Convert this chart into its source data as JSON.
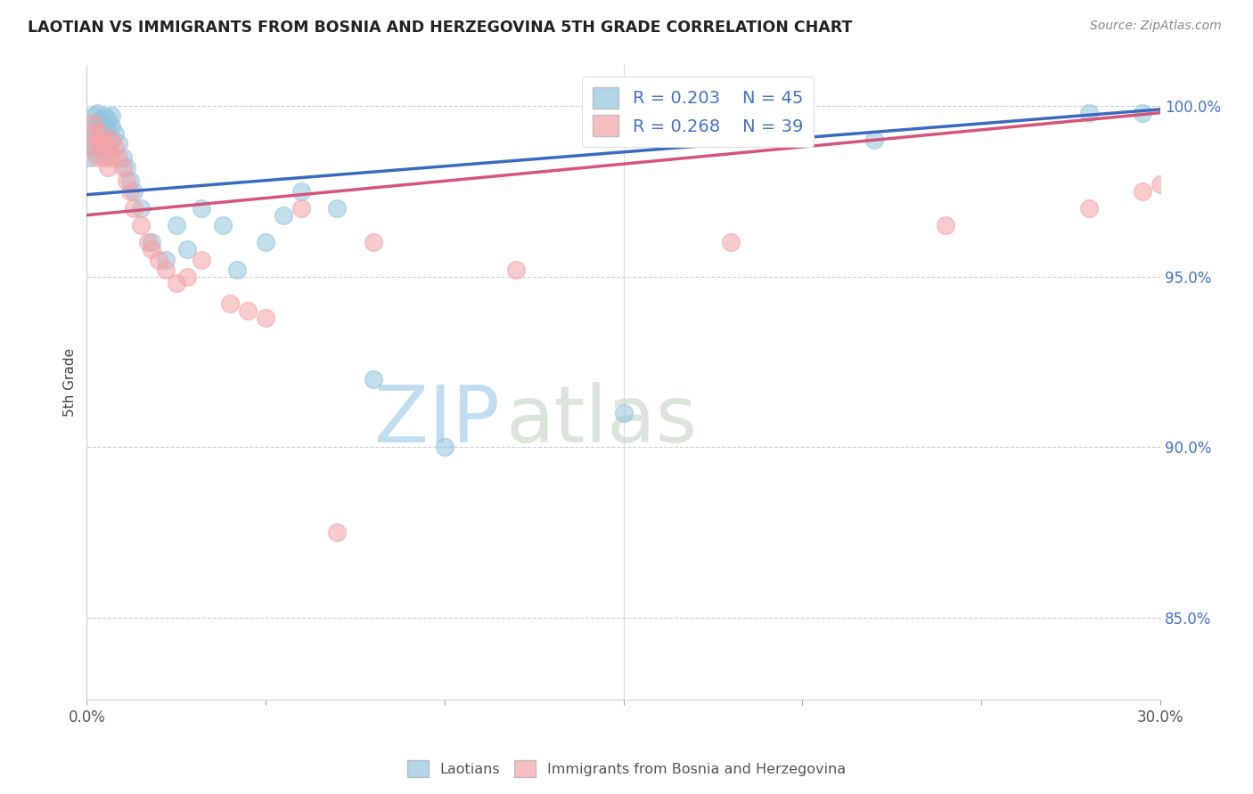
{
  "title": "LAOTIAN VS IMMIGRANTS FROM BOSNIA AND HERZEGOVINA 5TH GRADE CORRELATION CHART",
  "source": "Source: ZipAtlas.com",
  "ylabel": "5th Grade",
  "legend_blue_r": "R = 0.203",
  "legend_blue_n": "N = 45",
  "legend_pink_r": "R = 0.268",
  "legend_pink_n": "N = 39",
  "blue_color": "#92c5de",
  "pink_color": "#f4a3a8",
  "blue_line_color": "#3a6abf",
  "pink_line_color": "#d4547a",
  "legend_label_blue": "Laotians",
  "legend_label_pink": "Immigrants from Bosnia and Herzegovina",
  "watermark_zip": "ZIP",
  "watermark_atlas": "atlas",
  "xlim": [
    0.0,
    0.3
  ],
  "ylim": [
    0.826,
    1.012
  ],
  "yticks": [
    0.85,
    0.9,
    0.95,
    1.0
  ],
  "ytick_labels": [
    "85.0%",
    "90.0%",
    "95.0%",
    "100.0%"
  ],
  "blue_x": [
    0.001,
    0.001,
    0.002,
    0.002,
    0.002,
    0.003,
    0.003,
    0.003,
    0.003,
    0.004,
    0.004,
    0.004,
    0.005,
    0.005,
    0.005,
    0.006,
    0.006,
    0.006,
    0.007,
    0.007,
    0.007,
    0.008,
    0.009,
    0.01,
    0.011,
    0.012,
    0.013,
    0.015,
    0.018,
    0.022,
    0.025,
    0.028,
    0.032,
    0.038,
    0.042,
    0.05,
    0.055,
    0.06,
    0.07,
    0.08,
    0.1,
    0.15,
    0.22,
    0.28,
    0.295
  ],
  "blue_y": [
    0.99,
    0.985,
    0.997,
    0.993,
    0.988,
    0.998,
    0.995,
    0.991,
    0.986,
    0.996,
    0.993,
    0.988,
    0.997,
    0.994,
    0.99,
    0.996,
    0.993,
    0.987,
    0.997,
    0.994,
    0.99,
    0.992,
    0.989,
    0.985,
    0.982,
    0.978,
    0.975,
    0.97,
    0.96,
    0.955,
    0.965,
    0.958,
    0.97,
    0.965,
    0.952,
    0.96,
    0.968,
    0.975,
    0.97,
    0.92,
    0.9,
    0.91,
    0.99,
    0.998,
    0.998
  ],
  "pink_x": [
    0.001,
    0.002,
    0.002,
    0.003,
    0.003,
    0.004,
    0.004,
    0.005,
    0.005,
    0.006,
    0.006,
    0.007,
    0.007,
    0.008,
    0.009,
    0.01,
    0.011,
    0.012,
    0.013,
    0.015,
    0.017,
    0.018,
    0.02,
    0.022,
    0.025,
    0.028,
    0.032,
    0.04,
    0.045,
    0.05,
    0.06,
    0.07,
    0.08,
    0.12,
    0.18,
    0.24,
    0.28,
    0.295,
    0.3
  ],
  "pink_y": [
    0.988,
    0.995,
    0.992,
    0.99,
    0.985,
    0.992,
    0.988,
    0.99,
    0.985,
    0.988,
    0.982,
    0.99,
    0.985,
    0.988,
    0.985,
    0.982,
    0.978,
    0.975,
    0.97,
    0.965,
    0.96,
    0.958,
    0.955,
    0.952,
    0.948,
    0.95,
    0.955,
    0.942,
    0.94,
    0.938,
    0.97,
    0.875,
    0.96,
    0.952,
    0.96,
    0.965,
    0.97,
    0.975,
    0.977
  ]
}
